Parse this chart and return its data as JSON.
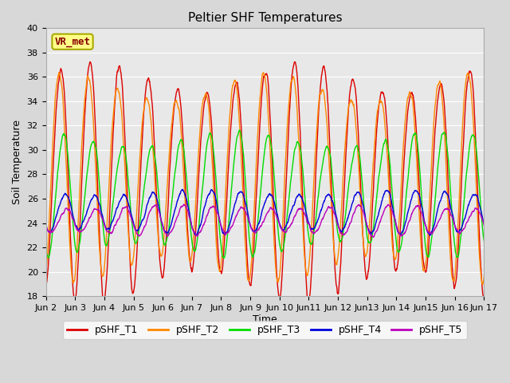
{
  "title": "Peltier SHF Temperatures",
  "ylabel": "Soil Temperature",
  "xlabel": "Time",
  "ylim": [
    18,
    40
  ],
  "yticks": [
    18,
    20,
    22,
    24,
    26,
    28,
    30,
    32,
    34,
    36,
    38,
    40
  ],
  "xtick_labels": [
    "Jun 2",
    "Jun 3",
    "Jun 4",
    "Jun 5",
    "Jun 6",
    "Jun 7",
    "Jun 8",
    "Jun 9",
    "Jun 10",
    "Jun11",
    "Jun 12",
    "Jun13",
    "Jun 14",
    "Jun15",
    "Jun 16",
    "Jun 17"
  ],
  "fig_bg": "#d8d8d8",
  "plot_bg": "#e8e8e8",
  "grid_color": "#ffffff",
  "series": [
    {
      "name": "pSHF_T1",
      "color": "#dd0000",
      "base_amp": 8.5,
      "mean": 28.0,
      "phase": 0.25,
      "amp_var": 1.8,
      "min_floor": 19.5
    },
    {
      "name": "pSHF_T2",
      "color": "#ff8800",
      "base_amp": 7.5,
      "mean": 28.2,
      "phase": 0.2,
      "amp_var": 1.2,
      "min_floor": 20.5
    },
    {
      "name": "pSHF_T3",
      "color": "#00dd00",
      "base_amp": 4.5,
      "mean": 26.5,
      "phase": 0.35,
      "amp_var": 0.8,
      "min_floor": 21.5
    },
    {
      "name": "pSHF_T4",
      "color": "#0000dd",
      "base_amp": 1.6,
      "mean": 24.9,
      "phase": 0.4,
      "amp_var": 0.3,
      "min_floor": 23.0
    },
    {
      "name": "pSHF_T5",
      "color": "#bb00bb",
      "base_amp": 1.1,
      "mean": 24.2,
      "phase": 0.45,
      "amp_var": 0.2,
      "min_floor": 22.8
    }
  ],
  "annotation_text": "VR_met",
  "annotation_color": "#880000",
  "annotation_bg": "#ffff88",
  "annotation_border": "#aaaa00",
  "title_fontsize": 11,
  "label_fontsize": 9,
  "tick_fontsize": 8,
  "legend_fontsize": 9,
  "linewidth": 1.0
}
